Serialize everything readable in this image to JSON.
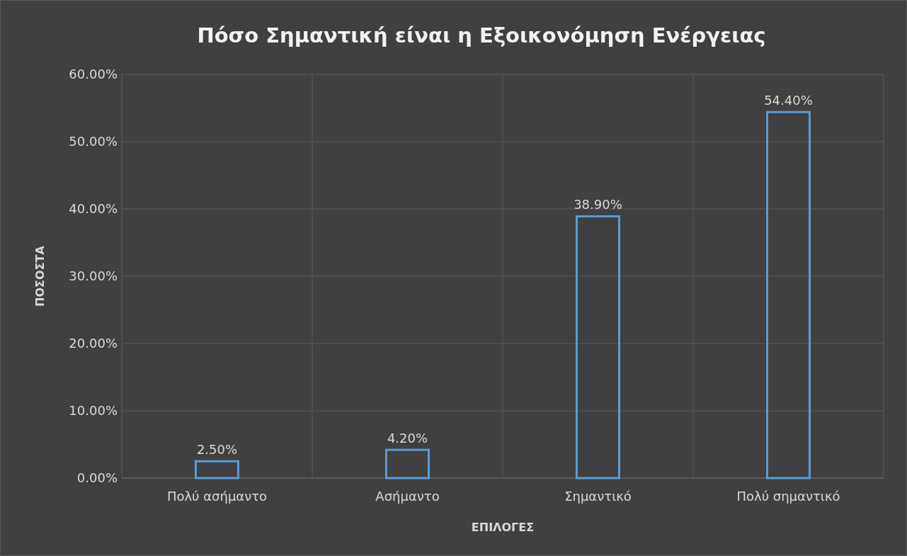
{
  "chart_data": {
    "type": "bar",
    "title": "Πόσο Σημαντική είναι η Εξοικονόμηση Ενέργειας",
    "xlabel": "ΕΠΙΛΟΓΕΣ",
    "ylabel": "ΠΟΣΟΣΤΑ",
    "categories": [
      "Πολύ ασήμαντο",
      "Ασήμαντο",
      "Σημαντικό",
      "Πολύ σημαντικό"
    ],
    "values": [
      2.5,
      4.2,
      38.9,
      54.4
    ],
    "value_labels": [
      "2.50%",
      "4.20%",
      "38.90%",
      "54.40%"
    ],
    "color": "#5b9bd5",
    "ylim": [
      0,
      60
    ],
    "yticks": [
      {
        "value": 0,
        "label": "0.00%"
      },
      {
        "value": 10,
        "label": "10.00%"
      },
      {
        "value": 20,
        "label": "20.00%"
      },
      {
        "value": 30,
        "label": "30.00%"
      },
      {
        "value": 40,
        "label": "40.00%"
      },
      {
        "value": 50,
        "label": "50.00%"
      },
      {
        "value": 60,
        "label": "60.00%"
      }
    ],
    "grid": true
  }
}
